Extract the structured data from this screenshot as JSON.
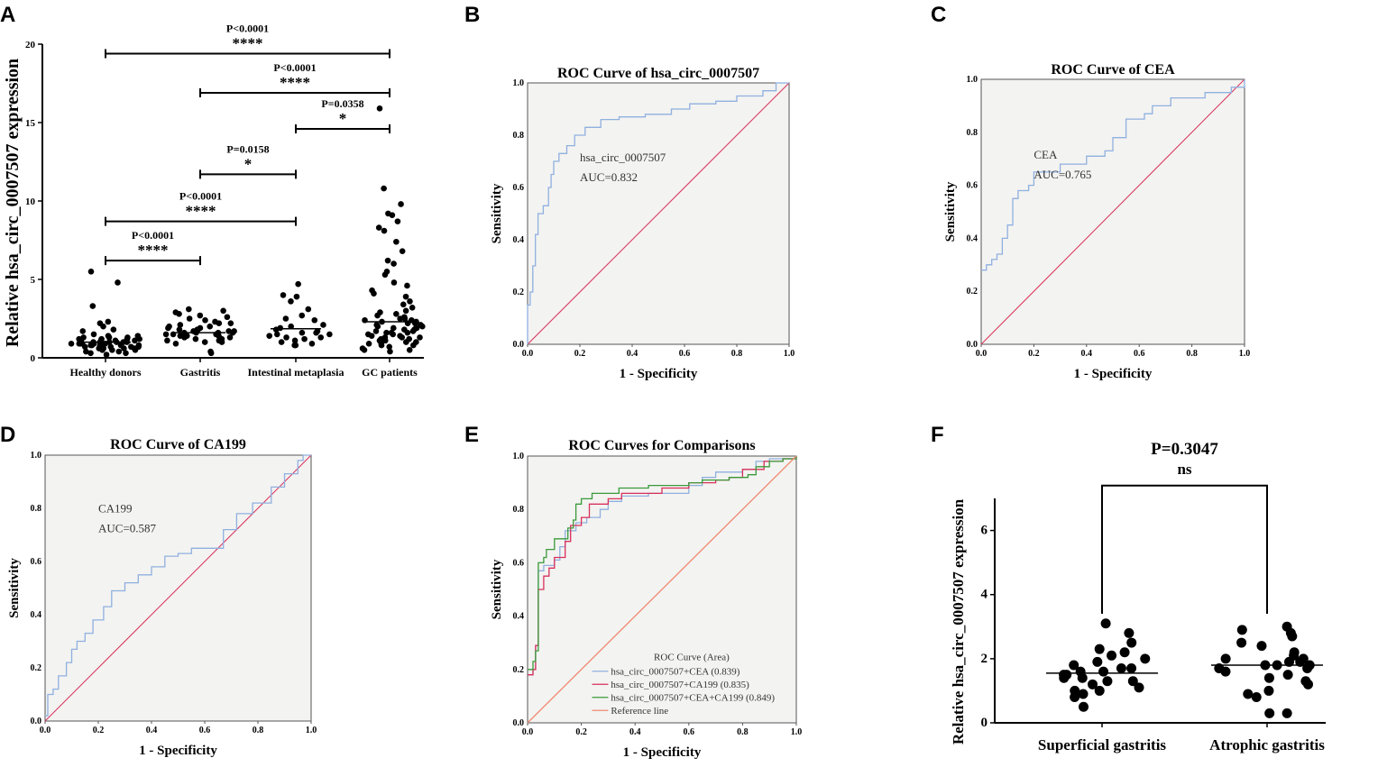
{
  "chart_data": [
    {
      "panel": "A",
      "type": "scatter",
      "ylabel": "Relative hsa_circ_0007507 expression",
      "ylim": [
        0,
        20
      ],
      "yticks": [
        "0",
        "5",
        "10",
        "15",
        "20"
      ],
      "categories": [
        "Healthy donors",
        "Gastritis",
        "Intestinal metaplasia",
        "GC patients"
      ],
      "medians": [
        1.0,
        1.6,
        1.85,
        2.3
      ],
      "values": [
        [
          5.5,
          4.8,
          3.3,
          2.3,
          2.2,
          2.0,
          1.8,
          1.7,
          1.5,
          1.4,
          1.4,
          1.3,
          1.3,
          1.2,
          1.2,
          1.2,
          1.1,
          1.1,
          1.1,
          1.0,
          1.0,
          1.0,
          1.0,
          1.0,
          0.9,
          0.9,
          0.9,
          0.9,
          0.9,
          0.8,
          0.8,
          0.8,
          0.8,
          0.7,
          0.7,
          0.7,
          0.7,
          0.6,
          0.6,
          0.6,
          0.5,
          0.5,
          0.5,
          0.4,
          0.4,
          0.3,
          0.3,
          0.2,
          1.1,
          1.2,
          0.8,
          0.9,
          1.0,
          1.3,
          0.6,
          0.7
        ],
        [
          3.1,
          3.0,
          2.9,
          2.8,
          2.7,
          2.6,
          2.5,
          2.4,
          2.3,
          2.2,
          2.1,
          2.0,
          2.0,
          1.9,
          1.9,
          1.8,
          1.8,
          1.7,
          1.7,
          1.7,
          1.6,
          1.6,
          1.6,
          1.5,
          1.5,
          1.5,
          1.4,
          1.4,
          1.3,
          1.3,
          1.2,
          1.2,
          1.1,
          1.1,
          1.0,
          1.0,
          0.9,
          0.4,
          0.3,
          1.8,
          1.6,
          2.2,
          1.4
        ],
        [
          4.7,
          4.0,
          3.9,
          3.6,
          3.1,
          2.7,
          2.5,
          2.4,
          2.1,
          2.0,
          1.9,
          1.8,
          1.7,
          1.6,
          1.6,
          1.5,
          1.5,
          1.4,
          1.3,
          1.3,
          1.2,
          1.1,
          1.0,
          0.9,
          0.8,
          0.8
        ],
        [
          15.9,
          10.8,
          9.8,
          9.2,
          9.1,
          8.7,
          8.3,
          8.1,
          7.4,
          6.8,
          6.2,
          6.0,
          5.5,
          5.3,
          4.8,
          4.6,
          4.3,
          4.1,
          3.9,
          3.6,
          3.4,
          3.2,
          3.0,
          2.9,
          2.8,
          2.7,
          2.6,
          2.5,
          2.5,
          2.4,
          2.3,
          2.3,
          2.2,
          2.2,
          2.1,
          2.1,
          2.0,
          2.0,
          1.9,
          1.9,
          1.8,
          1.8,
          1.7,
          1.7,
          1.6,
          1.6,
          1.5,
          1.5,
          1.4,
          1.4,
          1.3,
          1.3,
          1.2,
          1.2,
          1.1,
          1.1,
          1.0,
          1.0,
          0.9,
          0.9,
          0.8,
          0.8,
          0.7,
          0.6,
          0.5,
          0.5,
          0.4,
          2.4,
          1.9,
          1.6,
          1.3
        ]
      ],
      "comparisons": [
        {
          "from": 0,
          "to": 3,
          "y": 19.4,
          "p": "P<0.0001",
          "stars": "****"
        },
        {
          "from": 1,
          "to": 3,
          "y": 16.9,
          "p": "P<0.0001",
          "stars": "****"
        },
        {
          "from": 2,
          "to": 3,
          "y": 14.6,
          "p": "P=0.0358",
          "stars": "*"
        },
        {
          "from": 1,
          "to": 2,
          "y": 11.7,
          "p": "P=0.0158",
          "stars": "*"
        },
        {
          "from": 0,
          "to": 2,
          "y": 8.7,
          "p": "P<0.0001",
          "stars": "****"
        },
        {
          "from": 0,
          "to": 1,
          "y": 6.2,
          "p": "P<0.0001",
          "stars": "****"
        }
      ]
    },
    {
      "panel": "B",
      "type": "line",
      "title": "ROC Curve of hsa_circ_0007507",
      "xlabel": "1 - Specificity",
      "ylabel": "Sensitivity",
      "xlim": [
        0,
        1
      ],
      "ylim": [
        0,
        1
      ],
      "ticks": [
        "0.0",
        "0.2",
        "0.4",
        "0.6",
        "0.8",
        "1.0"
      ],
      "annotation": [
        "hsa_circ_0007507",
        "AUC=0.832"
      ],
      "series": [
        {
          "name": "hsa_circ_0007507",
          "color": "#8fb0e0",
          "points": [
            [
              0,
              0
            ],
            [
              0,
              0.15
            ],
            [
              0.01,
              0.15
            ],
            [
              0.01,
              0.2
            ],
            [
              0.02,
              0.2
            ],
            [
              0.02,
              0.3
            ],
            [
              0.03,
              0.32
            ],
            [
              0.03,
              0.42
            ],
            [
              0.04,
              0.45
            ],
            [
              0.04,
              0.5
            ],
            [
              0.06,
              0.53
            ],
            [
              0.08,
              0.6
            ],
            [
              0.09,
              0.65
            ],
            [
              0.1,
              0.7
            ],
            [
              0.12,
              0.73
            ],
            [
              0.15,
              0.76
            ],
            [
              0.18,
              0.8
            ],
            [
              0.22,
              0.83
            ],
            [
              0.28,
              0.86
            ],
            [
              0.35,
              0.87
            ],
            [
              0.45,
              0.88
            ],
            [
              0.55,
              0.9
            ],
            [
              0.62,
              0.92
            ],
            [
              0.72,
              0.93
            ],
            [
              0.8,
              0.95
            ],
            [
              0.9,
              0.97
            ],
            [
              0.95,
              1
            ],
            [
              1,
              1
            ]
          ]
        }
      ]
    },
    {
      "panel": "C",
      "type": "line",
      "title": "ROC Curve of CEA",
      "xlabel": "1 - Specificity",
      "ylabel": "Sensitivity",
      "xlim": [
        0,
        1
      ],
      "ylim": [
        0,
        1
      ],
      "ticks": [
        "0.0",
        "0.2",
        "0.4",
        "0.6",
        "0.8",
        "1.0"
      ],
      "annotation": [
        "CEA",
        "AUC=0.765"
      ],
      "series": [
        {
          "name": "CEA",
          "color": "#8fb0e0",
          "points": [
            [
              0,
              0.28
            ],
            [
              0.02,
              0.3
            ],
            [
              0.04,
              0.32
            ],
            [
              0.06,
              0.34
            ],
            [
              0.08,
              0.4
            ],
            [
              0.1,
              0.45
            ],
            [
              0.12,
              0.55
            ],
            [
              0.14,
              0.58
            ],
            [
              0.18,
              0.6
            ],
            [
              0.2,
              0.65
            ],
            [
              0.3,
              0.68
            ],
            [
              0.4,
              0.71
            ],
            [
              0.47,
              0.73
            ],
            [
              0.5,
              0.78
            ],
            [
              0.55,
              0.85
            ],
            [
              0.62,
              0.87
            ],
            [
              0.65,
              0.9
            ],
            [
              0.72,
              0.93
            ],
            [
              0.85,
              0.95
            ],
            [
              0.95,
              0.97
            ],
            [
              1,
              1
            ]
          ]
        }
      ]
    },
    {
      "panel": "D",
      "type": "line",
      "title": "ROC Curve of CA199",
      "xlabel": "1 - Specificity",
      "ylabel": "Sensitivity",
      "xlim": [
        0,
        1
      ],
      "ylim": [
        0,
        1
      ],
      "ticks": [
        "0.0",
        "0.2",
        "0.4",
        "0.6",
        "0.8",
        "1.0"
      ],
      "annotation": [
        "CA199",
        "AUC=0.587"
      ],
      "series": [
        {
          "name": "CA199",
          "color": "#8fb0e0",
          "points": [
            [
              0,
              0.02
            ],
            [
              0.01,
              0.1
            ],
            [
              0.03,
              0.12
            ],
            [
              0.05,
              0.17
            ],
            [
              0.08,
              0.22
            ],
            [
              0.1,
              0.27
            ],
            [
              0.12,
              0.3
            ],
            [
              0.15,
              0.33
            ],
            [
              0.18,
              0.38
            ],
            [
              0.22,
              0.43
            ],
            [
              0.25,
              0.49
            ],
            [
              0.3,
              0.52
            ],
            [
              0.35,
              0.55
            ],
            [
              0.4,
              0.58
            ],
            [
              0.45,
              0.62
            ],
            [
              0.5,
              0.63
            ],
            [
              0.55,
              0.65
            ],
            [
              0.67,
              0.65
            ],
            [
              0.67,
              0.72
            ],
            [
              0.72,
              0.78
            ],
            [
              0.78,
              0.82
            ],
            [
              0.85,
              0.88
            ],
            [
              0.9,
              0.93
            ],
            [
              0.95,
              0.98
            ],
            [
              0.97,
              1
            ],
            [
              1,
              1
            ]
          ]
        }
      ]
    },
    {
      "panel": "E",
      "type": "line",
      "title": "ROC Curves for  Comparisons",
      "xlabel": "1 - Specificity",
      "ylabel": "Sensitivity",
      "xlim": [
        0,
        1
      ],
      "ylim": [
        0,
        1
      ],
      "ticks": [
        "0.0",
        "0.2",
        "0.4",
        "0.6",
        "0.8",
        "1.0"
      ],
      "legend_title": "ROC Curve (Area)",
      "legend_position": "bottom-right",
      "series": [
        {
          "name": "hsa_circ_0007507+CEA (0.839)",
          "color": "#8fb0e0",
          "points": [
            [
              0,
              0.18
            ],
            [
              0.02,
              0.2
            ],
            [
              0.03,
              0.29
            ],
            [
              0.04,
              0.5
            ],
            [
              0.04,
              0.57
            ],
            [
              0.06,
              0.59
            ],
            [
              0.1,
              0.61
            ],
            [
              0.12,
              0.66
            ],
            [
              0.14,
              0.72
            ],
            [
              0.18,
              0.75
            ],
            [
              0.22,
              0.77
            ],
            [
              0.27,
              0.8
            ],
            [
              0.3,
              0.83
            ],
            [
              0.35,
              0.85
            ],
            [
              0.45,
              0.86
            ],
            [
              0.6,
              0.89
            ],
            [
              0.65,
              0.92
            ],
            [
              0.7,
              0.94
            ],
            [
              0.8,
              0.95
            ],
            [
              0.85,
              0.98
            ],
            [
              0.9,
              0.99
            ],
            [
              1,
              1
            ]
          ]
        },
        {
          "name": "hsa_circ_0007507+CA199 (0.835)",
          "color": "#d9305a",
          "points": [
            [
              0,
              0.18
            ],
            [
              0.02,
              0.2
            ],
            [
              0.03,
              0.29
            ],
            [
              0.04,
              0.5
            ],
            [
              0.06,
              0.55
            ],
            [
              0.08,
              0.58
            ],
            [
              0.1,
              0.62
            ],
            [
              0.14,
              0.68
            ],
            [
              0.16,
              0.74
            ],
            [
              0.2,
              0.77
            ],
            [
              0.23,
              0.82
            ],
            [
              0.3,
              0.84
            ],
            [
              0.35,
              0.86
            ],
            [
              0.5,
              0.88
            ],
            [
              0.6,
              0.9
            ],
            [
              0.7,
              0.91
            ],
            [
              0.75,
              0.92
            ],
            [
              0.8,
              0.95
            ],
            [
              0.88,
              0.98
            ],
            [
              0.95,
              0.99
            ],
            [
              1,
              1
            ]
          ]
        },
        {
          "name": "hsa_circ_0007507+CEA+CA199 (0.849)",
          "color": "#3a9a3a",
          "points": [
            [
              0,
              0.2
            ],
            [
              0.02,
              0.23
            ],
            [
              0.03,
              0.27
            ],
            [
              0.04,
              0.6
            ],
            [
              0.06,
              0.62
            ],
            [
              0.07,
              0.65
            ],
            [
              0.1,
              0.69
            ],
            [
              0.15,
              0.73
            ],
            [
              0.17,
              0.76
            ],
            [
              0.18,
              0.82
            ],
            [
              0.2,
              0.84
            ],
            [
              0.24,
              0.86
            ],
            [
              0.34,
              0.88
            ],
            [
              0.45,
              0.89
            ],
            [
              0.6,
              0.9
            ],
            [
              0.65,
              0.91
            ],
            [
              0.75,
              0.92
            ],
            [
              0.82,
              0.93
            ],
            [
              0.85,
              0.96
            ],
            [
              0.9,
              0.98
            ],
            [
              0.95,
              0.99
            ],
            [
              1,
              1
            ]
          ]
        },
        {
          "name": "Reference line",
          "color": "#f08a70",
          "points": [
            [
              0,
              0
            ],
            [
              1,
              1
            ]
          ]
        }
      ]
    },
    {
      "panel": "F",
      "type": "scatter",
      "ylabel": "Relative hsa_circ_0007507 expression",
      "ylim": [
        0,
        7
      ],
      "yticks": [
        "0",
        "2",
        "4",
        "6"
      ],
      "categories": [
        "Superficial gastritis",
        "Atrophic gastritis"
      ],
      "medians": [
        1.55,
        1.8
      ],
      "values": [
        [
          3.1,
          2.8,
          2.5,
          2.3,
          2.2,
          2.1,
          2.0,
          1.9,
          1.8,
          1.7,
          1.7,
          1.6,
          1.6,
          1.5,
          1.5,
          1.4,
          1.4,
          1.3,
          1.3,
          1.2,
          1.1,
          1.0,
          1.0,
          0.9,
          0.8,
          0.5
        ],
        [
          3.0,
          2.9,
          2.8,
          2.7,
          2.5,
          2.4,
          2.2,
          2.1,
          2.0,
          2.0,
          1.9,
          1.9,
          1.8,
          1.8,
          1.8,
          1.7,
          1.7,
          1.6,
          1.5,
          1.4,
          1.3,
          1.2,
          1.0,
          0.9,
          0.8,
          0.3,
          0.3
        ]
      ],
      "comparisons": [
        {
          "from": 0,
          "to": 1,
          "y": 7.4,
          "p": "P=0.3047",
          "stars": "ns"
        }
      ]
    }
  ]
}
